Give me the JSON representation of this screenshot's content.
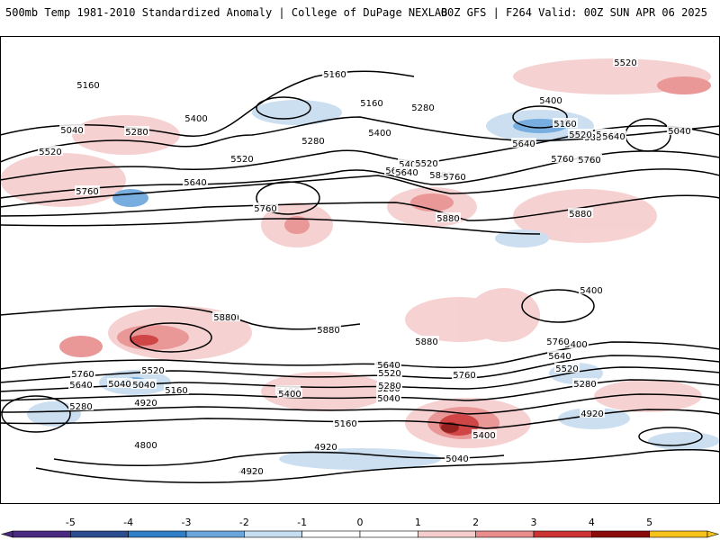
{
  "header": {
    "left": "500mb Temp 1981-2010 Standardized Anomaly | College of DuPage NEXLAB",
    "right": "00Z GFS | F264 Valid: 00Z SUN APR 06 2025"
  },
  "colorbar": {
    "ticks": [
      "-5",
      "-4",
      "-3",
      "-2",
      "-1",
      "0",
      "1",
      "2",
      "3",
      "4",
      "5"
    ],
    "colors": [
      "#4a2a80",
      "#2b4c8e",
      "#2f7fc8",
      "#6aa6dc",
      "#c6dcf0",
      "#ffffff",
      "#ffffff",
      "#f6cdcd",
      "#e88c8c",
      "#cc3333",
      "#8b0a0a",
      "#f5c11a"
    ]
  },
  "contour_labels": [
    "5160",
    "5040",
    "5280",
    "5400",
    "5160",
    "5520",
    "5760",
    "5640",
    "5520",
    "5760",
    "5640",
    "5880",
    "5400",
    "5640",
    "5880",
    "5760",
    "5160",
    "5280",
    "5400",
    "5520",
    "5640",
    "5760",
    "5880",
    "5280",
    "5400",
    "5520",
    "5640",
    "5760",
    "5160",
    "5520",
    "5640",
    "5760",
    "5880",
    "5880",
    "5880",
    "5400",
    "5040",
    "5280",
    "5400",
    "5520",
    "5640",
    "5760",
    "5040",
    "5160",
    "5280",
    "4920",
    "5280",
    "5400",
    "5520",
    "5640",
    "4920",
    "4800",
    "5040",
    "5160",
    "4920",
    "4920",
    "5040",
    "5400",
    "5520",
    "5640",
    "5760",
    "5280",
    "5880",
    "5520",
    "5040",
    "5280",
    "5400",
    "5640",
    "5760",
    "4920"
  ]
}
